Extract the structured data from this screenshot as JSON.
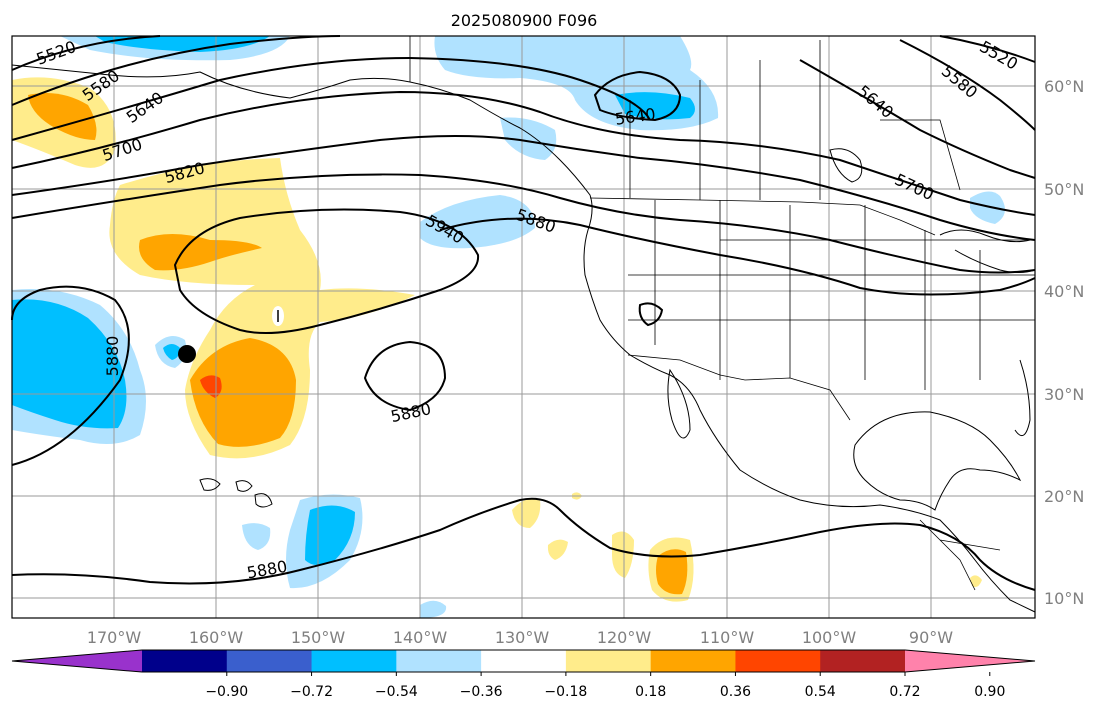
{
  "title": "2025080900 F096",
  "map": {
    "lon_labels": [
      "170°W",
      "160°W",
      "150°W",
      "140°W",
      "130°W",
      "120°W",
      "110°W",
      "100°W",
      "90°W"
    ],
    "lat_labels": [
      "60°N",
      "50°N",
      "40°N",
      "30°N",
      "20°N",
      "10°N"
    ],
    "contour_labels": [
      "5520",
      "5580",
      "5640",
      "5700",
      "5820",
      "5940",
      "5880",
      "5880",
      "5640",
      "5640",
      "5580",
      "5520",
      "5700",
      "5880",
      "5880"
    ]
  },
  "colorbar": {
    "tick_labels": [
      "−0.90",
      "−0.72",
      "−0.54",
      "−0.36",
      "−0.18",
      "0.18",
      "0.36",
      "0.54",
      "0.72",
      "0.90"
    ],
    "colors": [
      "#9932cc",
      "#00008b",
      "#3a5fcd",
      "#00bfff",
      "#b0e2ff",
      "#ffffff",
      "#ffec8b",
      "#ffa500",
      "#ff4500",
      "#b22222",
      "#ff82ab"
    ]
  },
  "shading_colors": {
    "light_blue": "#b0e2ff",
    "blue": "#00bfff",
    "light_yellow": "#ffec8b",
    "orange": "#ffa500",
    "red_orange": "#ff4500"
  }
}
